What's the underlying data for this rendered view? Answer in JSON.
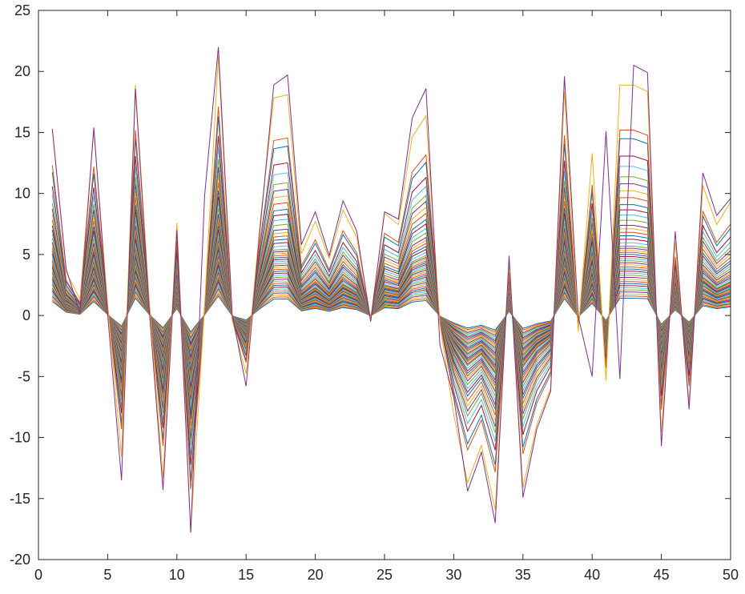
{
  "chart_data": {
    "type": "line",
    "title": "",
    "xlabel": "",
    "ylabel": "",
    "xlim": [
      0,
      50
    ],
    "ylim": [
      -20,
      25
    ],
    "xticks": [
      0,
      5,
      10,
      15,
      20,
      25,
      30,
      35,
      40,
      45,
      50
    ],
    "yticks": [
      -20,
      -15,
      -10,
      -5,
      0,
      5,
      10,
      15,
      20,
      25
    ],
    "grid": false,
    "legend": "none",
    "x": [
      1,
      2,
      3,
      4,
      5,
      6,
      7,
      8,
      9,
      10,
      11,
      12,
      13,
      14,
      15,
      16,
      17,
      18,
      19,
      20,
      21,
      22,
      23,
      24,
      25,
      26,
      27,
      28,
      29,
      30,
      31,
      32,
      33,
      34,
      35,
      36,
      37,
      38,
      39,
      40,
      41,
      42,
      43,
      44,
      45,
      46,
      47,
      48,
      49,
      50
    ],
    "profile": [
      1.15,
      0.27,
      0.1,
      1.14,
      0.07,
      -0.87,
      1.42,
      0.1,
      -1.0,
      0.57,
      -1.33,
      0.06,
      1.6,
      -0.03,
      -0.36,
      0.56,
      1.34,
      1.36,
      0.38,
      0.58,
      0.35,
      0.65,
      0.48,
      -0.02,
      0.63,
      0.56,
      1.1,
      1.23,
      -0.05,
      -0.61,
      -1.03,
      -0.8,
      -1.2,
      0.33,
      -1.06,
      -0.67,
      -0.45,
      1.38,
      -0.1,
      1.0,
      -0.4,
      1.42,
      1.42,
      1.38,
      -0.72,
      0.45,
      -0.54,
      0.8,
      0.56,
      0.7
    ],
    "scales": [
      1.0,
      1.12,
      1.24,
      1.36,
      1.48,
      1.6,
      1.72,
      1.84,
      1.96,
      2.08,
      2.2,
      2.32,
      2.44,
      2.56,
      2.68,
      2.8,
      2.92,
      3.04,
      3.16,
      3.28,
      3.4,
      3.52,
      3.64,
      3.76,
      3.88,
      4.0,
      4.2,
      4.4,
      4.6,
      4.8,
      5.0,
      5.2,
      5.5,
      5.8,
      6.1,
      6.4,
      6.8,
      7.2,
      7.6,
      8.0,
      8.6,
      9.2,
      10.2,
      10.7,
      13.3
    ],
    "outer_series": {
      "values": [
        15.3,
        3.8,
        0.2,
        15.4,
        0.1,
        -13.5,
        18.6,
        0.5,
        -14.3,
        7.0,
        -17.8,
        9.8,
        22.0,
        0.1,
        -5.8,
        7.0,
        18.9,
        19.7,
        5.8,
        8.5,
        4.9,
        9.4,
        6.9,
        -0.5,
        8.5,
        7.9,
        16.2,
        18.6,
        -2.4,
        -6.7,
        -14.4,
        -11.2,
        -17.0,
        4.9,
        -14.9,
        -9.3,
        -6.2,
        19.6,
        -0.1,
        -5.0,
        15.1,
        -5.2,
        20.5,
        19.9,
        -10.7,
        6.9,
        -7.7,
        11.7,
        8.2,
        9.6
      ]
    },
    "series_colors": [
      "#0072BD",
      "#D95319",
      "#EDB120",
      "#7E2F8E",
      "#77AC30",
      "#4DBEEE",
      "#A2142F"
    ],
    "outer_color": "#7E2F8E"
  }
}
